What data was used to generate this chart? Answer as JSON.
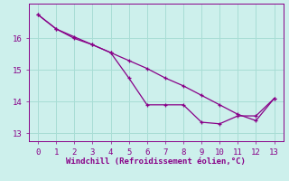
{
  "xlabel": "Windchill (Refroidissement éolien,°C)",
  "background_color": "#cdf0ec",
  "line_color": "#880088",
  "xlim": [
    -0.5,
    13.5
  ],
  "ylim": [
    12.75,
    17.1
  ],
  "yticks": [
    13,
    14,
    15,
    16
  ],
  "xticks": [
    0,
    1,
    2,
    3,
    4,
    5,
    6,
    7,
    8,
    9,
    10,
    11,
    12,
    13
  ],
  "series1_x": [
    0,
    1,
    2,
    3,
    4,
    5,
    6,
    7,
    8,
    9,
    10,
    11,
    12,
    13
  ],
  "series1_y": [
    16.75,
    16.3,
    16.0,
    15.8,
    15.55,
    14.75,
    13.9,
    13.9,
    13.9,
    13.35,
    13.3,
    13.55,
    13.55,
    14.1
  ],
  "series2_x": [
    0,
    1,
    2,
    3,
    4,
    5,
    6,
    7,
    8,
    9,
    10,
    11,
    12,
    13
  ],
  "series2_y": [
    16.75,
    16.3,
    16.05,
    15.8,
    15.55,
    15.3,
    15.05,
    14.75,
    14.5,
    14.2,
    13.9,
    13.6,
    13.4,
    14.1
  ],
  "grid_color": "#a8ddd5",
  "tick_label_fontsize": 6.5,
  "xlabel_fontsize": 6.5
}
